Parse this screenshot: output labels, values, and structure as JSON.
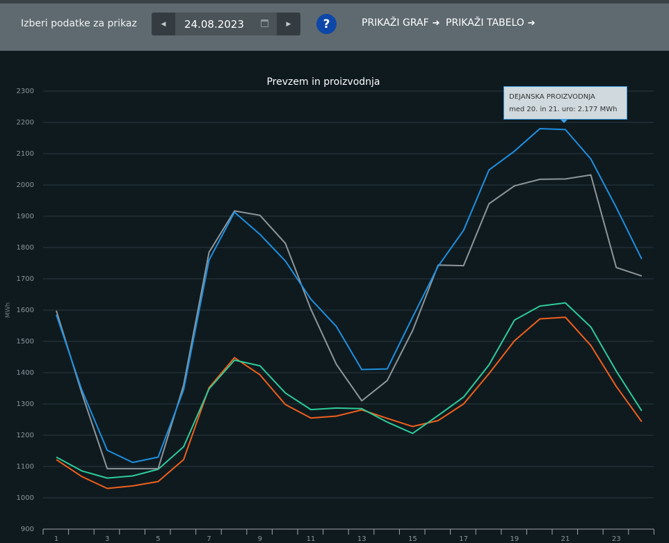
{
  "toolbar": {
    "label": "Izberi podatke za prikaz",
    "date": "24.08.2023",
    "help_label": "?",
    "show_chart_label": "PRIKAŽI GRAF",
    "show_table_label": "PRIKAŽI TABELO"
  },
  "chart_data": {
    "type": "line",
    "title": "Prevzem in proizvodnja",
    "ylabel": "MWh",
    "ylim": [
      900,
      2300
    ],
    "yticks": [
      900,
      1000,
      1100,
      1200,
      1300,
      1400,
      1500,
      1600,
      1700,
      1800,
      1900,
      2000,
      2100,
      2200,
      2300
    ],
    "x": [
      1,
      2,
      3,
      4,
      5,
      6,
      7,
      8,
      9,
      10,
      11,
      12,
      13,
      14,
      15,
      16,
      17,
      18,
      19,
      20,
      21,
      22,
      23,
      24
    ],
    "xtick_labels": [
      "1",
      "3",
      "5",
      "7",
      "9",
      "11",
      "13",
      "15",
      "17",
      "19",
      "21",
      "23"
    ],
    "grid": true,
    "series": [
      {
        "color": "#1e90e0",
        "values": [
          1585,
          1345,
          1152,
          1113,
          1130,
          1345,
          1760,
          1913,
          1842,
          1757,
          1635,
          1548,
          1410,
          1412,
          1578,
          1740,
          1855,
          2048,
          2108,
          2180,
          2177,
          2083,
          1928,
          1763
        ]
      },
      {
        "color": "#8e979b",
        "values": [
          1598,
          1335,
          1093,
          1093,
          1093,
          1360,
          1785,
          1917,
          1903,
          1813,
          1603,
          1427,
          1310,
          1375,
          1535,
          1744,
          1742,
          1940,
          1997,
          2018,
          2019,
          2032,
          1736,
          1709
        ]
      },
      {
        "color": "#2ecc9a",
        "values": [
          1130,
          1086,
          1063,
          1070,
          1091,
          1163,
          1348,
          1440,
          1422,
          1335,
          1282,
          1287,
          1285,
          1242,
          1206,
          1263,
          1322,
          1425,
          1568,
          1613,
          1623,
          1546,
          1405,
          1278
        ]
      },
      {
        "color": "#f0601c",
        "values": [
          1122,
          1068,
          1030,
          1038,
          1052,
          1122,
          1352,
          1448,
          1393,
          1298,
          1255,
          1261,
          1281,
          1254,
          1228,
          1247,
          1300,
          1397,
          1502,
          1572,
          1577,
          1487,
          1356,
          1243
        ]
      }
    ],
    "tooltip": {
      "series_label": "DEJANSKA PROIZVODNJA",
      "detail": "med 20. in 21. uro: 2.177 MWh",
      "hour": 21
    }
  }
}
